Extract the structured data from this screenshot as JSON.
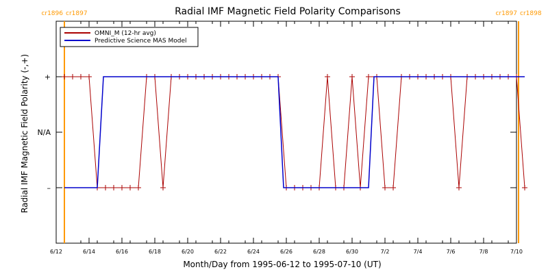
{
  "chart_data": {
    "type": "line",
    "title": "Radial IMF Magnetic Field Polarity Comparisons",
    "xlabel": "Month/Day from 1995-06-12 to 1995-07-10 (UT)",
    "ylabel": "Radial IMF Magnetic Field Polarity (-,+)",
    "xlim": [
      "1995-06-12",
      "1995-07-10"
    ],
    "ylim": [
      -2,
      2
    ],
    "x_ticks": [
      {
        "date": "1995-06-12",
        "label": "6/12"
      },
      {
        "date": "1995-06-14",
        "label": "6/14"
      },
      {
        "date": "1995-06-16",
        "label": "6/16"
      },
      {
        "date": "1995-06-18",
        "label": "6/18"
      },
      {
        "date": "1995-06-20",
        "label": "6/20"
      },
      {
        "date": "1995-06-22",
        "label": "6/22"
      },
      {
        "date": "1995-06-24",
        "label": "6/24"
      },
      {
        "date": "1995-06-26",
        "label": "6/26"
      },
      {
        "date": "1995-06-28",
        "label": "6/28"
      },
      {
        "date": "1995-06-30",
        "label": "6/30"
      },
      {
        "date": "1995-07-02",
        "label": "7/2"
      },
      {
        "date": "1995-07-04",
        "label": "7/4"
      },
      {
        "date": "1995-07-06",
        "label": "7/6"
      },
      {
        "date": "1995-07-08",
        "label": "7/8"
      },
      {
        "date": "1995-07-10",
        "label": "7/10"
      }
    ],
    "y_ticks": [
      {
        "value": 1,
        "label": "+"
      },
      {
        "value": 0,
        "label": "N/A"
      },
      {
        "value": -1,
        "label": "–"
      }
    ],
    "legend": {
      "placement": "top-left"
    },
    "carrington_markers": [
      {
        "date": "1995-06-12T12:00",
        "label_left": "cr1896",
        "label_right": "cr1897",
        "color": "#ff9900"
      },
      {
        "date": "1995-07-10T03:00",
        "label_left": "cr1897",
        "label_right": "cr1898",
        "color": "#ff9900"
      }
    ],
    "series": [
      {
        "name": "OMNI_M (12-hr avg)",
        "color": "#aa0000",
        "markers": "plus",
        "points": [
          [
            "1995-06-12T12:00",
            1
          ],
          [
            "1995-06-13T00:00",
            1
          ],
          [
            "1995-06-13T12:00",
            1
          ],
          [
            "1995-06-14T00:00",
            1
          ],
          [
            "1995-06-14T12:00",
            -1
          ],
          [
            "1995-06-15T00:00",
            -1
          ],
          [
            "1995-06-15T12:00",
            -1
          ],
          [
            "1995-06-16T00:00",
            -1
          ],
          [
            "1995-06-16T12:00",
            -1
          ],
          [
            "1995-06-17T00:00",
            -1
          ],
          [
            "1995-06-17T12:00",
            1
          ],
          [
            "1995-06-18T00:00",
            1
          ],
          [
            "1995-06-18T12:00",
            -1
          ],
          [
            "1995-06-19T00:00",
            1
          ],
          [
            "1995-06-19T12:00",
            1
          ],
          [
            "1995-06-20T00:00",
            1
          ],
          [
            "1995-06-20T12:00",
            1
          ],
          [
            "1995-06-21T00:00",
            1
          ],
          [
            "1995-06-21T12:00",
            1
          ],
          [
            "1995-06-22T00:00",
            1
          ],
          [
            "1995-06-22T12:00",
            1
          ],
          [
            "1995-06-23T00:00",
            1
          ],
          [
            "1995-06-23T12:00",
            1
          ],
          [
            "1995-06-24T00:00",
            1
          ],
          [
            "1995-06-24T12:00",
            1
          ],
          [
            "1995-06-25T00:00",
            1
          ],
          [
            "1995-06-25T12:00",
            1
          ],
          [
            "1995-06-26T00:00",
            -1
          ],
          [
            "1995-06-26T12:00",
            -1
          ],
          [
            "1995-06-27T00:00",
            -1
          ],
          [
            "1995-06-27T12:00",
            -1
          ],
          [
            "1995-06-28T00:00",
            -1
          ],
          [
            "1995-06-28T12:00",
            1
          ],
          [
            "1995-06-29T00:00",
            -1
          ],
          [
            "1995-06-29T12:00",
            -1
          ],
          [
            "1995-06-30T00:00",
            1
          ],
          [
            "1995-06-30T12:00",
            -1
          ],
          [
            "1995-07-01T00:00",
            1
          ],
          [
            "1995-07-01T12:00",
            1
          ],
          [
            "1995-07-02T00:00",
            -1
          ],
          [
            "1995-07-02T12:00",
            -1
          ],
          [
            "1995-07-03T00:00",
            1
          ],
          [
            "1995-07-03T12:00",
            1
          ],
          [
            "1995-07-04T00:00",
            1
          ],
          [
            "1995-07-04T12:00",
            1
          ],
          [
            "1995-07-05T00:00",
            1
          ],
          [
            "1995-07-05T12:00",
            1
          ],
          [
            "1995-07-06T00:00",
            1
          ],
          [
            "1995-07-06T12:00",
            -1
          ],
          [
            "1995-07-07T00:00",
            1
          ],
          [
            "1995-07-07T12:00",
            1
          ],
          [
            "1995-07-08T00:00",
            1
          ],
          [
            "1995-07-08T12:00",
            1
          ],
          [
            "1995-07-09T00:00",
            1
          ],
          [
            "1995-07-09T12:00",
            1
          ],
          [
            "1995-07-10T00:00",
            1
          ],
          [
            "1995-07-10T12:00",
            -1
          ]
        ]
      },
      {
        "name": "Predictive Science MAS Model",
        "color": "#0000cc",
        "markers": "none",
        "points": [
          [
            "1995-06-12T12:00",
            -1
          ],
          [
            "1995-06-14T12:00",
            -1
          ],
          [
            "1995-06-14T21:00",
            1
          ],
          [
            "1995-06-25T12:00",
            1
          ],
          [
            "1995-06-25T20:00",
            -1
          ],
          [
            "1995-07-01T00:00",
            -1
          ],
          [
            "1995-07-01T08:00",
            1
          ],
          [
            "1995-07-10T12:00",
            1
          ]
        ]
      }
    ]
  }
}
